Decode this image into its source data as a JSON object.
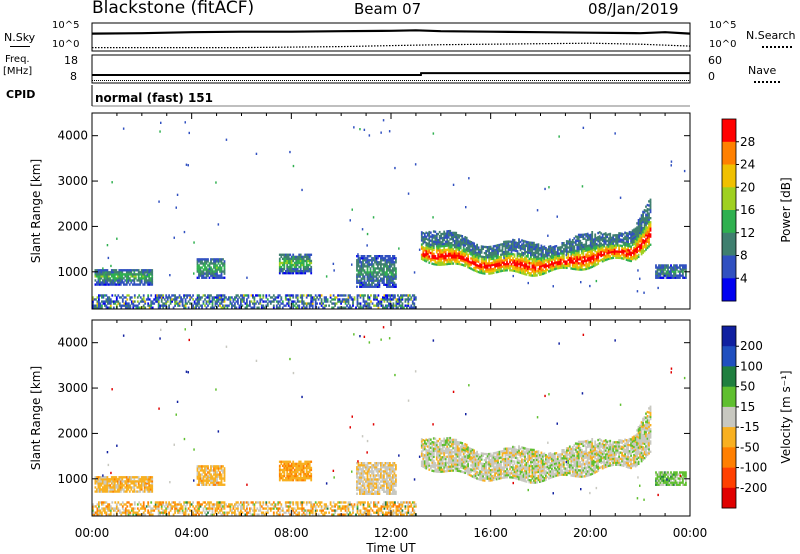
{
  "header": {
    "station": "Blackstone (fitACF)",
    "beam": "Beam 07",
    "date": "08/Jan/2019"
  },
  "strip_labels": {
    "nsky": "N.Sky",
    "nsearch": "N.Search",
    "nsearch_ticks": [
      "10^5",
      "10^0"
    ],
    "freq": "Freq.",
    "freq_unit": "[MHz]",
    "freq_ticks": [
      "18",
      "8"
    ],
    "nave": "Nave",
    "nave_ticks": [
      "60",
      "0"
    ],
    "cpid": "CPID",
    "cpid_value": "normal (fast) 151"
  },
  "chart_data": [
    {
      "type": "line",
      "panel": "noise",
      "series": [
        {
          "name": "N.Sky",
          "style": "solid",
          "x": [
            0,
            2,
            4,
            6,
            8,
            10,
            12,
            13,
            14,
            16,
            18,
            20,
            22,
            23,
            24
          ],
          "y": [
            3.2,
            3.3,
            3.5,
            3.6,
            3.6,
            3.7,
            3.8,
            3.9,
            3.7,
            3.6,
            3.5,
            3.4,
            3.3,
            3.5,
            3.2
          ]
        },
        {
          "name": "N.Search",
          "style": "dotted",
          "x": [
            0,
            2,
            4,
            6,
            8,
            10,
            12,
            14,
            16,
            18,
            20,
            22,
            24
          ],
          "y": [
            0.3,
            0.3,
            0.3,
            0.3,
            0.4,
            0.5,
            0.7,
            0.9,
            1.0,
            1.1,
            1.2,
            1.0,
            0.6
          ]
        }
      ],
      "ylim": [
        0,
        5
      ]
    },
    {
      "type": "line",
      "panel": "frequency",
      "x": [
        0,
        13.2,
        13.21,
        24
      ],
      "y": [
        10.5,
        10.5,
        11.3,
        11.3
      ],
      "ylim": [
        8,
        18
      ]
    },
    {
      "type": "heatmap",
      "panel": "power",
      "xlabel": "",
      "ylabel": "Slant Range [km]",
      "xlim": [
        0,
        24
      ],
      "ylim": [
        180,
        4500
      ],
      "yticks": [
        "1000",
        "2000",
        "3000",
        "4000"
      ],
      "colorbar_label": "Power [dB]",
      "colorbar_ticks": [
        "4",
        "8",
        "12",
        "16",
        "20",
        "24",
        "28"
      ],
      "colorbar_range": [
        0,
        32
      ],
      "colors": [
        "#0000f0",
        "#3050c0",
        "#3f7f6f",
        "#2fb04f",
        "#9fd020",
        "#f0c000",
        "#ff8000",
        "#ff0000"
      ],
      "echo_regions": [
        {
          "t": [
            0.1,
            2.4
          ],
          "r": [
            700,
            1050
          ],
          "peak": 14
        },
        {
          "t": [
            4.2,
            5.3
          ],
          "r": [
            850,
            1300
          ],
          "peak": 14
        },
        {
          "t": [
            7.5,
            8.8
          ],
          "r": [
            950,
            1400
          ],
          "peak": 16
        },
        {
          "t": [
            10.6,
            12.2
          ],
          "r": [
            650,
            1350
          ],
          "peak": 10
        },
        {
          "t": [
            0.0,
            13.0
          ],
          "r": [
            190,
            500
          ],
          "peak": 20
        },
        {
          "t": [
            13.2,
            22.4
          ],
          "r": [
            1200,
            1900
          ],
          "peak": 30
        },
        {
          "t": [
            22.6,
            23.8
          ],
          "r": [
            850,
            1150
          ],
          "peak": 8
        }
      ]
    },
    {
      "type": "heatmap",
      "panel": "velocity",
      "xlabel": "Time UT",
      "ylabel": "Slant Range [km]",
      "xlim": [
        0,
        24
      ],
      "ylim": [
        180,
        4500
      ],
      "xticks": [
        "00:00",
        "04:00",
        "08:00",
        "12:00",
        "16:00",
        "20:00",
        "00:00"
      ],
      "yticks": [
        "1000",
        "2000",
        "3000",
        "4000"
      ],
      "colorbar_label": "Velocity [m s⁻¹]",
      "colorbar_ticks": [
        "200",
        "100",
        "50",
        "15",
        "-15",
        "-50",
        "-100",
        "-200"
      ],
      "colors": [
        "#1020a0",
        "#1f4fbf",
        "#1f7f3f",
        "#5fbf2f",
        "#c8c8c0",
        "#f8b020",
        "#ff7f00",
        "#ff4000",
        "#e00000"
      ],
      "echo_regions": [
        {
          "t": [
            0.1,
            2.4
          ],
          "r": [
            700,
            1050
          ],
          "v": -30
        },
        {
          "t": [
            4.2,
            5.3
          ],
          "r": [
            850,
            1300
          ],
          "v": -30
        },
        {
          "t": [
            7.5,
            8.8
          ],
          "r": [
            950,
            1400
          ],
          "v": -40
        },
        {
          "t": [
            10.6,
            12.2
          ],
          "r": [
            650,
            1350
          ],
          "v": -10
        },
        {
          "t": [
            0.0,
            13.0
          ],
          "r": [
            190,
            500
          ],
          "v": -40
        },
        {
          "t": [
            13.2,
            22.4
          ],
          "r": [
            1200,
            1900
          ],
          "v": 0
        },
        {
          "t": [
            22.6,
            23.8
          ],
          "r": [
            850,
            1150
          ],
          "v": 30
        }
      ]
    }
  ]
}
